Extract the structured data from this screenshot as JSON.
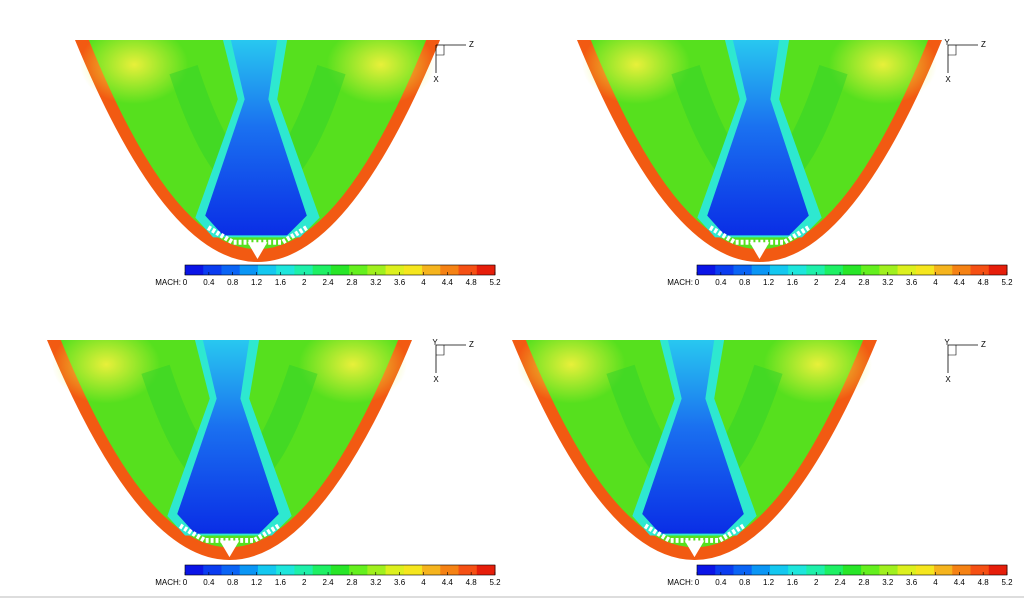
{
  "chart_data": [
    {
      "type": "contour",
      "colorbar_label": "MACH:",
      "clim": [
        0,
        5.2
      ],
      "cticks": [
        0,
        0.4,
        0.8,
        1.2,
        1.6,
        2,
        2.4,
        2.8,
        3.2,
        3.6,
        4,
        4.4,
        4.8,
        5.2
      ],
      "colors": [
        "#0a14e6",
        "#0a3cf0",
        "#0a64f5",
        "#0a96f5",
        "#14c8f0",
        "#1ee6dc",
        "#1ef0aa",
        "#1ef064",
        "#28e628",
        "#64f01e",
        "#a0f01e",
        "#dcf01e",
        "#f5e61e",
        "#f5b41e",
        "#f58214",
        "#f55014",
        "#e61e0a"
      ],
      "triad": {
        "z": "Z",
        "x": "X"
      }
    },
    {
      "type": "contour",
      "colorbar_label": "MACH:",
      "clim": [
        0,
        5.2
      ],
      "cticks": [
        0,
        0.4,
        0.8,
        1.2,
        1.6,
        2,
        2.4,
        2.8,
        3.2,
        3.6,
        4,
        4.4,
        4.8,
        5.2
      ],
      "colors": [
        "#0a14e6",
        "#0a3cf0",
        "#0a64f5",
        "#0a96f5",
        "#14c8f0",
        "#1ee6dc",
        "#1ef0aa",
        "#1ef064",
        "#28e628",
        "#64f01e",
        "#a0f01e",
        "#dcf01e",
        "#f5e61e",
        "#f5b41e",
        "#f58214",
        "#f55014",
        "#e61e0a"
      ],
      "triad": {
        "y": "Y",
        "z": "Z",
        "x": "X"
      }
    },
    {
      "type": "contour",
      "colorbar_label": "MACH:",
      "clim": [
        0,
        5.2
      ],
      "cticks": [
        0,
        0.4,
        0.8,
        1.2,
        1.6,
        2,
        2.4,
        2.8,
        3.2,
        3.6,
        4,
        4.4,
        4.8,
        5.2
      ],
      "colors": [
        "#0a14e6",
        "#0a3cf0",
        "#0a64f5",
        "#0a96f5",
        "#14c8f0",
        "#1ee6dc",
        "#1ef0aa",
        "#1ef064",
        "#28e628",
        "#64f01e",
        "#a0f01e",
        "#dcf01e",
        "#f5e61e",
        "#f5b41e",
        "#f58214",
        "#f55014",
        "#e61e0a"
      ],
      "triad": {
        "y": "Y",
        "z": "Z",
        "x": "X"
      }
    },
    {
      "type": "contour",
      "colorbar_label": "MACH:",
      "clim": [
        0,
        5.2
      ],
      "cticks": [
        0,
        0.4,
        0.8,
        1.2,
        1.6,
        2,
        2.4,
        2.8,
        3.2,
        3.6,
        4,
        4.4,
        4.8,
        5.2
      ],
      "colors": [
        "#0a14e6",
        "#0a3cf0",
        "#0a64f5",
        "#0a96f5",
        "#14c8f0",
        "#1ee6dc",
        "#1ef0aa",
        "#1ef064",
        "#28e628",
        "#64f01e",
        "#a0f01e",
        "#dcf01e",
        "#f5e61e",
        "#f5b41e",
        "#f58214",
        "#f55014",
        "#e61e0a"
      ],
      "triad": {
        "y": "Y",
        "z": "Z",
        "x": "X"
      }
    }
  ]
}
